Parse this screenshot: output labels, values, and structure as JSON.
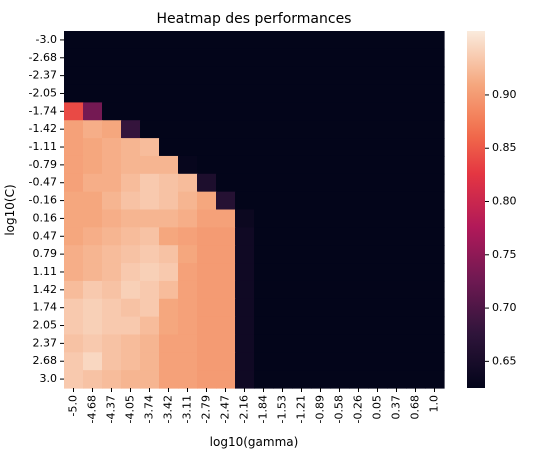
{
  "chart_data": {
    "type": "heatmap",
    "title": "Heatmap des performances",
    "xlabel": "log10(gamma)",
    "ylabel": "log10(C)",
    "x": [
      "-5.0",
      "-4.68",
      "-4.37",
      "-4.05",
      "-3.74",
      "-3.42",
      "-3.11",
      "-2.79",
      "-2.47",
      "-2.16",
      "-1.84",
      "-1.53",
      "-1.21",
      "-0.89",
      "-0.58",
      "-0.26",
      "0.05",
      "0.37",
      "0.68",
      "1.0"
    ],
    "y": [
      "-3.0",
      "-2.68",
      "-2.37",
      "-2.05",
      "-1.74",
      "-1.42",
      "-1.11",
      "-0.79",
      "-0.47",
      "-0.16",
      "0.16",
      "0.47",
      "0.79",
      "1.11",
      "1.42",
      "1.74",
      "2.05",
      "2.37",
      "2.68",
      "3.0"
    ],
    "colorbar": {
      "min": 0.625,
      "max": 0.96,
      "ticks": [
        0.65,
        0.7,
        0.75,
        0.8,
        0.85,
        0.9
      ]
    },
    "colormap": "rocket",
    "values": [
      [
        0.625,
        0.625,
        0.625,
        0.625,
        0.625,
        0.625,
        0.625,
        0.625,
        0.625,
        0.625,
        0.625,
        0.625,
        0.625,
        0.625,
        0.625,
        0.625,
        0.625,
        0.625,
        0.625,
        0.625
      ],
      [
        0.625,
        0.625,
        0.625,
        0.625,
        0.625,
        0.625,
        0.625,
        0.625,
        0.625,
        0.625,
        0.625,
        0.625,
        0.625,
        0.625,
        0.625,
        0.625,
        0.625,
        0.625,
        0.625,
        0.625
      ],
      [
        0.625,
        0.625,
        0.625,
        0.625,
        0.625,
        0.625,
        0.625,
        0.625,
        0.625,
        0.625,
        0.625,
        0.625,
        0.625,
        0.625,
        0.625,
        0.625,
        0.625,
        0.625,
        0.625,
        0.625
      ],
      [
        0.625,
        0.625,
        0.625,
        0.625,
        0.625,
        0.625,
        0.625,
        0.625,
        0.625,
        0.625,
        0.625,
        0.625,
        0.625,
        0.625,
        0.625,
        0.625,
        0.625,
        0.625,
        0.625,
        0.625
      ],
      [
        0.84,
        0.73,
        0.625,
        0.625,
        0.625,
        0.625,
        0.625,
        0.625,
        0.625,
        0.625,
        0.625,
        0.625,
        0.625,
        0.625,
        0.625,
        0.625,
        0.625,
        0.625,
        0.625,
        0.625
      ],
      [
        0.905,
        0.915,
        0.91,
        0.68,
        0.625,
        0.625,
        0.625,
        0.625,
        0.625,
        0.625,
        0.625,
        0.625,
        0.625,
        0.625,
        0.625,
        0.625,
        0.625,
        0.625,
        0.625,
        0.625
      ],
      [
        0.905,
        0.91,
        0.915,
        0.92,
        0.925,
        0.625,
        0.625,
        0.625,
        0.625,
        0.625,
        0.625,
        0.625,
        0.625,
        0.625,
        0.625,
        0.625,
        0.625,
        0.625,
        0.625,
        0.625
      ],
      [
        0.905,
        0.91,
        0.915,
        0.92,
        0.92,
        0.92,
        0.63,
        0.625,
        0.625,
        0.625,
        0.625,
        0.625,
        0.625,
        0.625,
        0.625,
        0.625,
        0.625,
        0.625,
        0.625,
        0.625
      ],
      [
        0.905,
        0.915,
        0.915,
        0.925,
        0.935,
        0.93,
        0.925,
        0.655,
        0.625,
        0.625,
        0.625,
        0.625,
        0.625,
        0.625,
        0.625,
        0.625,
        0.625,
        0.625,
        0.625,
        0.625
      ],
      [
        0.91,
        0.91,
        0.92,
        0.93,
        0.935,
        0.93,
        0.92,
        0.91,
        0.665,
        0.625,
        0.625,
        0.625,
        0.625,
        0.625,
        0.625,
        0.625,
        0.625,
        0.625,
        0.625,
        0.625
      ],
      [
        0.91,
        0.91,
        0.915,
        0.92,
        0.92,
        0.92,
        0.915,
        0.905,
        0.905,
        0.635,
        0.625,
        0.625,
        0.625,
        0.625,
        0.625,
        0.625,
        0.625,
        0.625,
        0.625,
        0.625
      ],
      [
        0.91,
        0.915,
        0.92,
        0.925,
        0.93,
        0.91,
        0.905,
        0.9,
        0.9,
        0.64,
        0.625,
        0.625,
        0.625,
        0.625,
        0.625,
        0.625,
        0.625,
        0.625,
        0.625,
        0.625
      ],
      [
        0.915,
        0.92,
        0.925,
        0.93,
        0.935,
        0.93,
        0.91,
        0.9,
        0.9,
        0.64,
        0.625,
        0.625,
        0.625,
        0.625,
        0.625,
        0.625,
        0.625,
        0.625,
        0.625,
        0.625
      ],
      [
        0.915,
        0.92,
        0.925,
        0.935,
        0.94,
        0.935,
        0.905,
        0.9,
        0.9,
        0.64,
        0.625,
        0.625,
        0.625,
        0.625,
        0.625,
        0.625,
        0.625,
        0.625,
        0.625,
        0.625
      ],
      [
        0.925,
        0.935,
        0.93,
        0.94,
        0.935,
        0.925,
        0.905,
        0.9,
        0.9,
        0.64,
        0.625,
        0.625,
        0.625,
        0.625,
        0.625,
        0.625,
        0.625,
        0.625,
        0.625,
        0.625
      ],
      [
        0.935,
        0.94,
        0.935,
        0.93,
        0.935,
        0.91,
        0.905,
        0.9,
        0.9,
        0.64,
        0.625,
        0.625,
        0.625,
        0.625,
        0.625,
        0.625,
        0.625,
        0.625,
        0.625,
        0.625
      ],
      [
        0.935,
        0.94,
        0.935,
        0.935,
        0.925,
        0.91,
        0.905,
        0.9,
        0.9,
        0.64,
        0.625,
        0.625,
        0.625,
        0.625,
        0.625,
        0.625,
        0.625,
        0.625,
        0.625,
        0.625
      ],
      [
        0.93,
        0.935,
        0.93,
        0.925,
        0.92,
        0.905,
        0.905,
        0.9,
        0.9,
        0.64,
        0.625,
        0.625,
        0.625,
        0.625,
        0.625,
        0.625,
        0.625,
        0.625,
        0.625,
        0.625
      ],
      [
        0.935,
        0.945,
        0.93,
        0.925,
        0.92,
        0.905,
        0.905,
        0.9,
        0.9,
        0.64,
        0.625,
        0.625,
        0.625,
        0.625,
        0.625,
        0.625,
        0.625,
        0.625,
        0.625,
        0.625
      ],
      [
        0.935,
        0.93,
        0.925,
        0.92,
        0.92,
        0.905,
        0.905,
        0.9,
        0.9,
        0.64,
        0.625,
        0.625,
        0.625,
        0.625,
        0.625,
        0.625,
        0.625,
        0.625,
        0.625,
        0.625
      ]
    ]
  }
}
